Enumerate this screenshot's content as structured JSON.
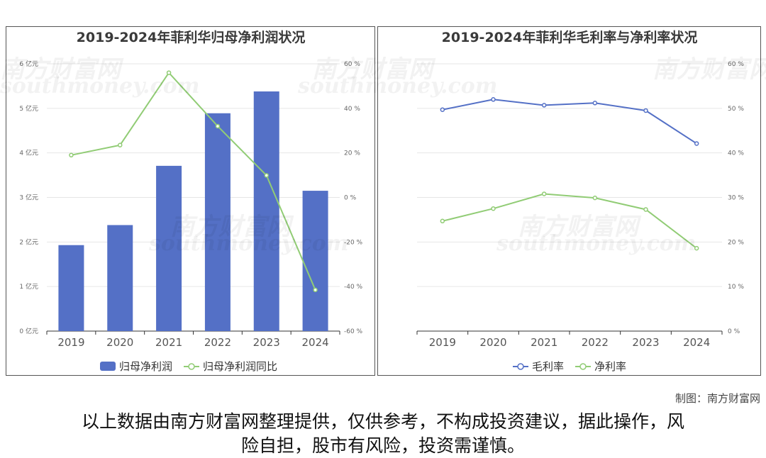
{
  "credit": "制图：南方财富网",
  "disclaimer": {
    "line1": "以上数据由南方财富网整理提供，仅供参考，不构成投资建议，据此操作，风",
    "line2": "险自担，股市有风险，投资需谨慎。"
  },
  "watermark": {
    "cn": "南方财富网",
    "en": "southmoney.com"
  },
  "chart_data": [
    {
      "type": "bar",
      "title": "2019-2024年菲利华归母净利润状况",
      "categories": [
        "2019",
        "2020",
        "2021",
        "2022",
        "2023",
        "2024"
      ],
      "series": [
        {
          "name": "归母净利润",
          "type": "bar",
          "axis": "left",
          "color": "#5470c6",
          "values": [
            1.93,
            2.38,
            3.71,
            4.89,
            5.38,
            3.15
          ]
        },
        {
          "name": "归母净利润同比",
          "type": "line",
          "axis": "right",
          "color": "#91cc75",
          "values": [
            19.0,
            23.5,
            56.0,
            32.0,
            9.9,
            -41.5
          ]
        }
      ],
      "y_left": {
        "ticks": [
          "0 亿元",
          "1 亿元",
          "2 亿元",
          "3 亿元",
          "4 亿元",
          "5 亿元",
          "6 亿元"
        ],
        "ylim": [
          0,
          6
        ]
      },
      "y_right": {
        "ticks": [
          "-60 %",
          "-40 %",
          "-20 %",
          "0 %",
          "20 %",
          "40 %",
          "60 %"
        ],
        "ylim": [
          -60,
          60
        ]
      },
      "legend_position": "bottom"
    },
    {
      "type": "line",
      "title": "2019-2024年菲利华毛利率与净利率状况",
      "categories": [
        "2019",
        "2020",
        "2021",
        "2022",
        "2023",
        "2024"
      ],
      "series": [
        {
          "name": "毛利率",
          "color": "#5470c6",
          "values": [
            49.7,
            52.0,
            50.7,
            51.2,
            49.5,
            42.1
          ]
        },
        {
          "name": "净利率",
          "color": "#91cc75",
          "values": [
            24.7,
            27.5,
            30.8,
            29.9,
            27.3,
            18.6
          ]
        }
      ],
      "y_right": {
        "ticks": [
          "0 %",
          "10 %",
          "20 %",
          "30 %",
          "40 %",
          "50 %",
          "60 %"
        ],
        "ylim": [
          0,
          60
        ]
      },
      "legend_position": "bottom"
    }
  ]
}
